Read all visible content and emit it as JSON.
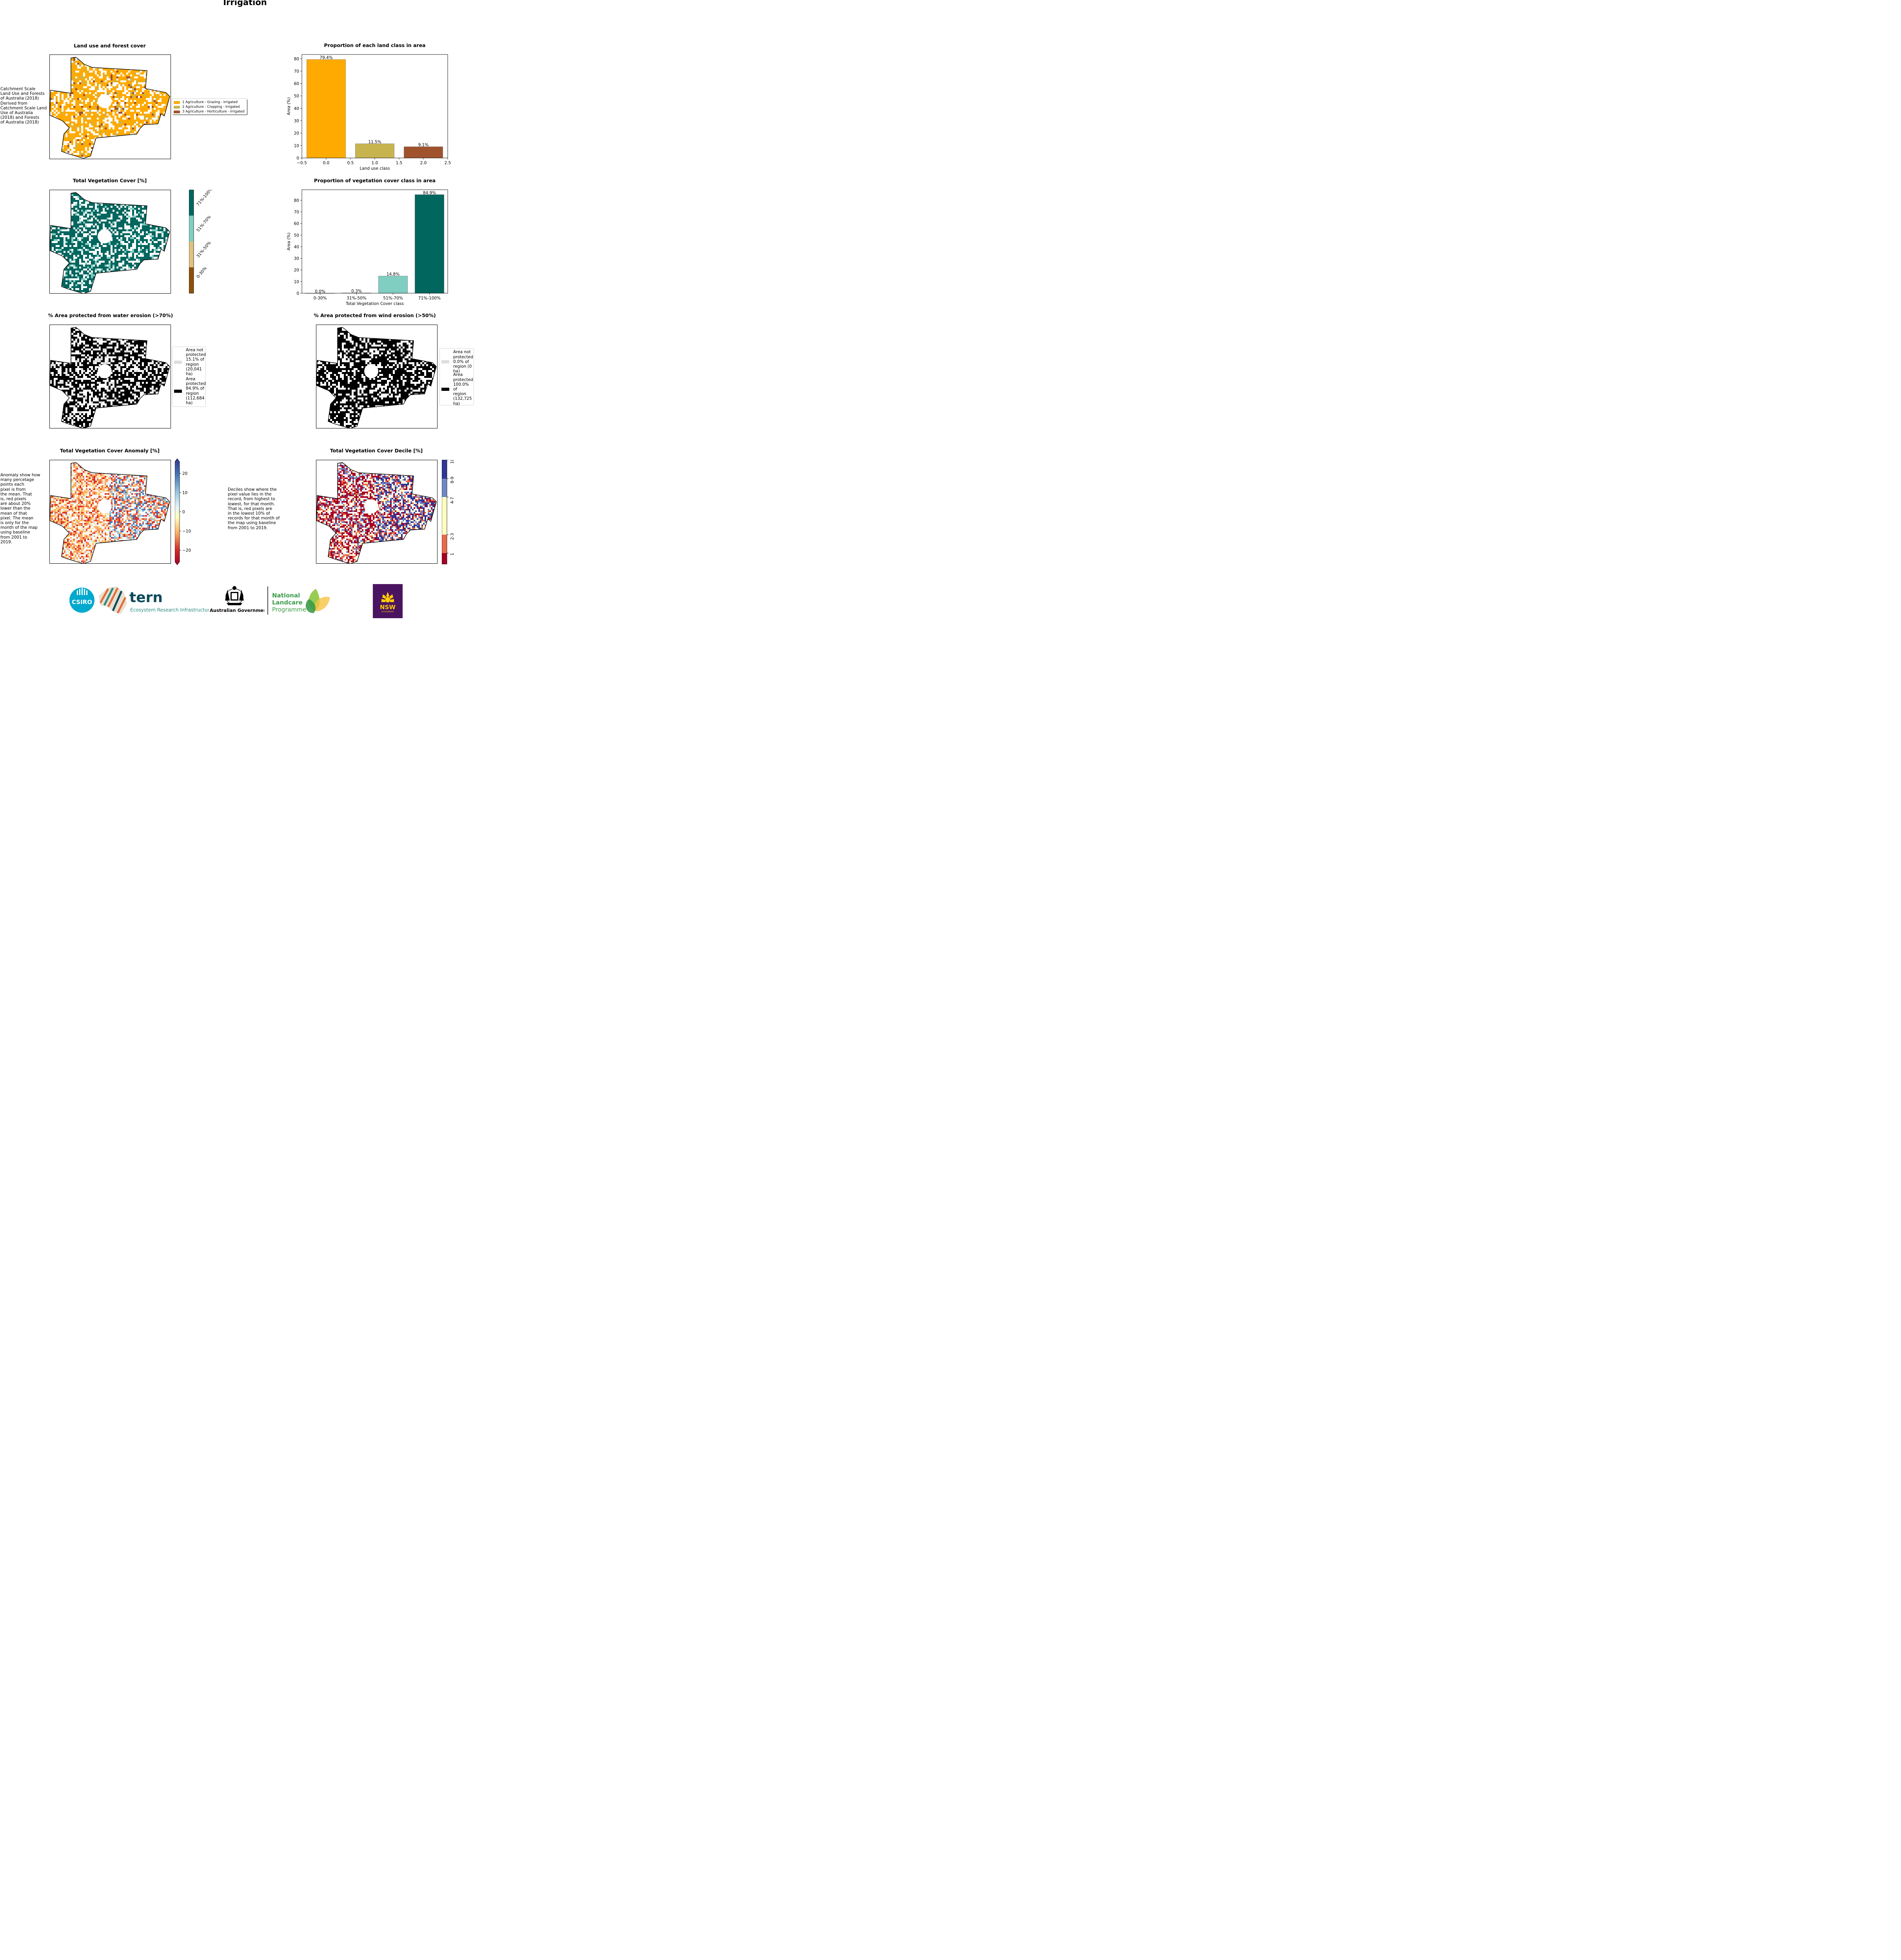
{
  "page": {
    "title": "Irrigation",
    "land_use_note": "Catchment Scale\nLand Use and Forests\nof Australia (2018)\nDerived from\nCatchment Scale Land\nUse of Australia\n(2018) and Forests\nof Australia (2018)",
    "anomaly_note": "Anomaly show how\nmany percetage\npoints each\npixel is from\nthe mean. That\nis, red pixels\nare about 20%\nlower than the\nmean of that\npixel. The mean\nis only for the\nmonth of the map\nusing baseline\nfrom 2001 to\n2019.",
    "decile_note": "Deciles show where the\npixel value lies in the\nrecord, from highest to\nlowest, for that month.\nThat is, red pixels are\nin the lowest 10% of\nrecords for that month of\nthe map using baseline\nfrom 2001 to 2019."
  },
  "maps": {
    "land_use": {
      "title": "Land use and forest cover",
      "legend": [
        {
          "label": "1 Agriculture - Grazing - Irrigated",
          "color": "#ffaa00"
        },
        {
          "label": "2 Agriculture - Cropping - Irrigated",
          "color": "#c8b44f"
        },
        {
          "label": "3 Agriculture - Horticulture - Irrigated",
          "color": "#a0522d"
        }
      ]
    },
    "veg_cover": {
      "title": "Total Vegetation Cover [%]",
      "colorbar": [
        {
          "label": "0-30%",
          "color": "#8c510a"
        },
        {
          "label": "31%-50%",
          "color": "#dfc27d"
        },
        {
          "label": "51%-70%",
          "color": "#80cdc1"
        },
        {
          "label": "71%-100%",
          "color": "#01665e"
        }
      ]
    },
    "water": {
      "title": "% Area protected from water erosion (>70%)",
      "legend": [
        {
          "label": "Area not\nprotected\n15.1% of\nregion\n(20,041\nha)",
          "color": "#dddddd"
        },
        {
          "label": "Area\nprotected\n84.9% of\nregion\n(112,684\nha)",
          "color": "#000000"
        }
      ]
    },
    "wind": {
      "title": "% Area protected from wind erosion (>50%)",
      "legend": [
        {
          "label": "Area not\nprotected\n0.0% of\nregion (0\nha)",
          "color": "#dddddd"
        },
        {
          "label": "Area\nprotected\n100.0% of\nregion\n(132,725\nha)",
          "color": "#000000"
        }
      ]
    },
    "anomaly": {
      "title": "Total Vegetation Cover Anomaly [%]",
      "ticks": [
        "20",
        "10",
        "0",
        "−10",
        "−20"
      ]
    },
    "decile": {
      "title": "Total Vegetation Cover Decile [%]",
      "ticks": [
        "10",
        "8-9",
        "4-7",
        "2-3",
        "1"
      ]
    }
  },
  "chart_data": [
    {
      "type": "bar",
      "title": "Proportion of each land class in area",
      "xlabel": "Land use class",
      "ylabel": "Area (%)",
      "x": [
        0,
        1,
        2
      ],
      "values": [
        79.4,
        11.5,
        9.1
      ],
      "bar_labels": [
        "79.4%",
        "11.5%",
        "9.1%"
      ],
      "colors": [
        "#ffaa00",
        "#c8b44f",
        "#a0522d"
      ],
      "xlim": [
        -0.5,
        2.5
      ],
      "ylim": [
        0,
        83.4
      ],
      "xticks": [
        "−0.5",
        "0.0",
        "0.5",
        "1.0",
        "1.5",
        "2.0",
        "2.5"
      ],
      "yticks": [
        "0",
        "10",
        "20",
        "30",
        "40",
        "50",
        "60",
        "70",
        "80"
      ]
    },
    {
      "type": "bar",
      "title": "Proportion of vegetation cover class in area",
      "xlabel": "Total Vegetation Cover class",
      "ylabel": "Area (%)",
      "categories": [
        "0-30%",
        "31%-50%",
        "51%-70%",
        "71%-100%"
      ],
      "values": [
        0.0,
        0.3,
        14.8,
        84.9
      ],
      "bar_labels": [
        "0.0%",
        "0.3%",
        "14.8%",
        "84.9%"
      ],
      "colors": [
        "#8c510a",
        "#dfc27d",
        "#80cdc1",
        "#01665e"
      ],
      "ylim": [
        0,
        89.1
      ],
      "yticks": [
        "0",
        "10",
        "20",
        "30",
        "40",
        "50",
        "60",
        "70",
        "80"
      ]
    }
  ],
  "logos": {
    "csiro": "CSIRO",
    "tern": "tern",
    "tern_sub": "Ecosystem Research Infrastructure",
    "aus_gov": "Australian Government",
    "nlp_1": "National",
    "nlp_2": "Landcare",
    "nlp_3": "Programme",
    "nsw": "NSW",
    "nsw_sub": "GOVERNMENT"
  }
}
